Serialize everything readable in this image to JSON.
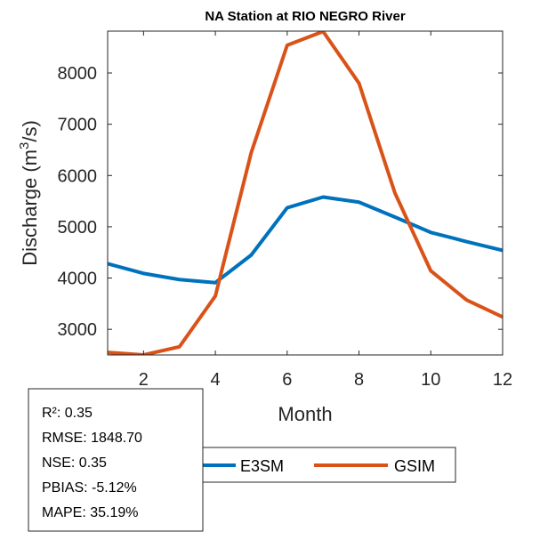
{
  "chart_data": {
    "type": "line",
    "title": "NA  Station at  RIO NEGRO  River",
    "xlabel": "Month",
    "ylabel": "Discharge (m^3/s)",
    "ylabel_parts": {
      "main": "Discharge (m",
      "sup": "3",
      "tail": "/s)"
    },
    "xlim": [
      1,
      12
    ],
    "ylim": [
      2500,
      8816
    ],
    "xticks": [
      2,
      4,
      6,
      8,
      10,
      12
    ],
    "yticks": [
      3000,
      4000,
      5000,
      6000,
      7000,
      8000
    ],
    "grid": false,
    "x": [
      1,
      2,
      3,
      4,
      5,
      6,
      7,
      8,
      9,
      10,
      11,
      12
    ],
    "series": [
      {
        "name": "E3SM",
        "color": "#0072BD",
        "values": [
          4280,
          4090,
          3970,
          3910,
          4450,
          5370,
          5580,
          5480,
          5190,
          4890,
          4710,
          4540
        ]
      },
      {
        "name": "GSIM",
        "color": "#D95319",
        "values": [
          2550,
          2500,
          2660,
          3650,
          6450,
          8540,
          8810,
          7800,
          5660,
          4140,
          3570,
          3240
        ]
      }
    ],
    "legend": {
      "placement": "bottom-outside",
      "orientation": "horizontal"
    },
    "annotation": {
      "lines": [
        "R²: 0.35",
        "RMSE: 1848.70",
        "NSE: 0.35",
        "PBIAS: -5.12%",
        "MAPE: 35.19%"
      ],
      "placement": "bottom-left"
    }
  }
}
